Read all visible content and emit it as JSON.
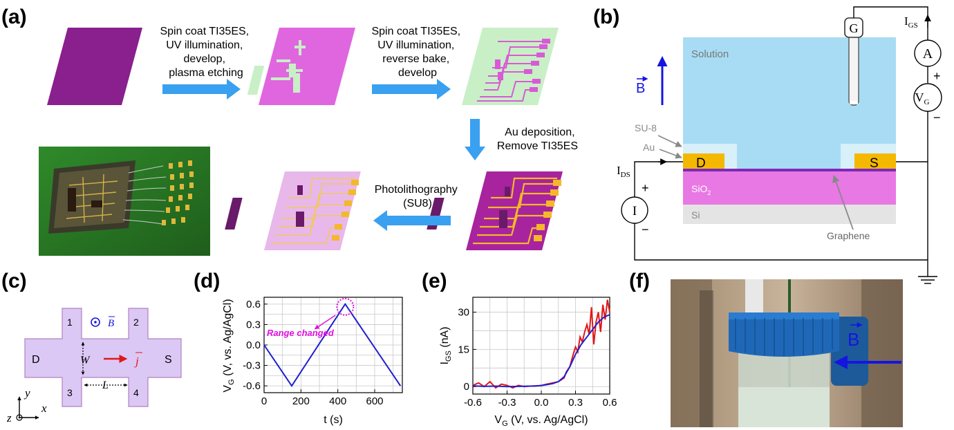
{
  "panel_labels": [
    "(a)",
    "(b)",
    "(c)",
    "(d)",
    "(e)",
    "(f)"
  ],
  "panel_a": {
    "step1": [
      "Spin coat TI35ES,",
      "UV illumination,",
      "develop,",
      "plasma etching"
    ],
    "step2": [
      "Spin coat TI35ES,",
      "UV illumination,",
      "reverse bake,",
      "develop"
    ],
    "step3": [
      "Au deposition,",
      "Remove TI35ES"
    ],
    "step4": [
      "Photolithography",
      "(SU8)"
    ],
    "colors": {
      "substrate": "#8a1f8e",
      "pink": "#e066e0",
      "resist": "#c9efc6",
      "gold": "#f4b829",
      "arrow": "#3aa0f0"
    }
  },
  "panel_b": {
    "solution": "Solution",
    "su8": "SU-8",
    "au": "Au",
    "drain": "D",
    "source": "S",
    "sio2": "SiO",
    "sio2_sub": "2",
    "si": "Si",
    "graphene": "Graphene",
    "gate": "G",
    "ammeter": "A",
    "vg": "V",
    "vg_sub": "G",
    "current_source": "I",
    "igs": "I",
    "igs_sub": "GS",
    "ids": "I",
    "ids_sub": "DS",
    "b_field": "B",
    "plus": "+",
    "minus": "−"
  },
  "panel_c": {
    "terminals": [
      "1",
      "2",
      "3",
      "4"
    ],
    "drain": "D",
    "source": "S",
    "width": "W",
    "length": "L",
    "current": "j",
    "field": "B",
    "axes": [
      "y",
      "x",
      "z"
    ]
  },
  "panel_f": {
    "field": "B"
  },
  "chart_data": [
    {
      "type": "line",
      "panel": "d",
      "x": [
        0,
        150,
        440,
        740
      ],
      "series": [
        {
          "values": [
            0,
            -0.6,
            0.6,
            -0.6
          ],
          "color": "#1f1fd0"
        }
      ],
      "xlabel": "t (s)",
      "ylabel_main": "V",
      "ylabel_sub": "G",
      "ylabel_rest": " (V, vs. Ag/AgCl)",
      "xlim": [
        0,
        750
      ],
      "ylim": [
        -0.7,
        0.7
      ],
      "xticks": [
        0,
        200,
        400,
        600
      ],
      "yticks": [
        -0.6,
        -0.3,
        0.0,
        0.3,
        0.6
      ],
      "ytick_labels": [
        "-0.6",
        "-0.3",
        "0.0",
        "0.3",
        "0.6"
      ],
      "annotation": "Range changed",
      "grid": true
    },
    {
      "type": "line",
      "panel": "e",
      "xlabel_main": "V",
      "xlabel_sub": "G",
      "xlabel_rest": " (V, vs. Ag/AgCl)",
      "ylabel_main": "I",
      "ylabel_sub": "GS",
      "ylabel_rest": " (nA)",
      "xlim": [
        -0.6,
        0.6
      ],
      "ylim": [
        -3,
        36
      ],
      "xticks": [
        -0.6,
        -0.3,
        0.0,
        0.3,
        0.6
      ],
      "xtick_labels": [
        "-0.6",
        "-0.3",
        "0.0",
        "0.3",
        "0.6"
      ],
      "yticks": [
        0,
        15,
        30
      ],
      "grid": true,
      "series": [
        {
          "color": "#e01818",
          "x": [
            -0.6,
            -0.55,
            -0.5,
            -0.45,
            -0.4,
            -0.35,
            -0.3,
            -0.25,
            -0.2,
            -0.15,
            -0.1,
            -0.05,
            0.0,
            0.05,
            0.1,
            0.15,
            0.2,
            0.22,
            0.25,
            0.28,
            0.3,
            0.32,
            0.34,
            0.36,
            0.38,
            0.4,
            0.42,
            0.44,
            0.46,
            0.48,
            0.5,
            0.52,
            0.54,
            0.56,
            0.58,
            0.6
          ],
          "values": [
            0.5,
            1.5,
            0,
            2,
            -0.5,
            1,
            0.5,
            -0.5,
            0.5,
            0,
            0.2,
            0.2,
            0.5,
            1,
            1.5,
            2,
            3.5,
            6,
            8,
            13,
            16,
            14,
            20,
            18,
            22,
            25,
            21,
            32,
            17,
            26,
            30,
            22,
            33,
            27,
            35,
            30
          ]
        },
        {
          "color": "#1f1fd0",
          "x": [
            -0.6,
            -0.5,
            -0.4,
            -0.3,
            -0.2,
            -0.1,
            0.0,
            0.05,
            0.1,
            0.15,
            0.2,
            0.25,
            0.3,
            0.35,
            0.4,
            0.45,
            0.5,
            0.55,
            0.6
          ],
          "values": [
            0.3,
            0.1,
            0.2,
            0,
            0.1,
            0.2,
            0.4,
            0.8,
            1.2,
            2,
            4,
            8,
            13,
            17,
            20,
            23,
            26,
            28,
            29
          ]
        }
      ]
    }
  ]
}
